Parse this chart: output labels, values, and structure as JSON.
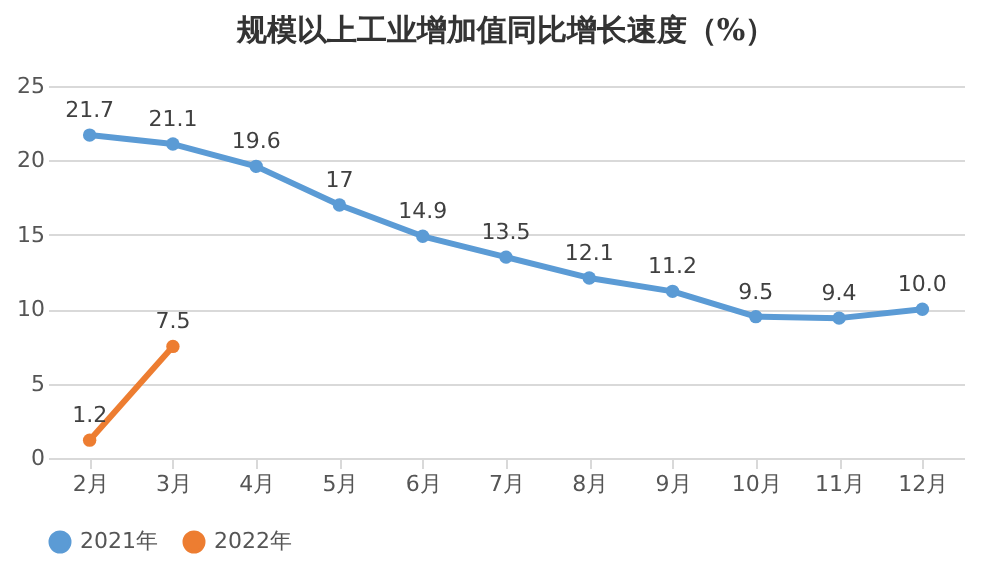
{
  "chart_data": {
    "type": "line",
    "title": "规模以上工业增加值同比增长速度（%）",
    "categories": [
      "2月",
      "3月",
      "4月",
      "5月",
      "6月",
      "7月",
      "8月",
      "9月",
      "10月",
      "11月",
      "12月"
    ],
    "series": [
      {
        "name": "2021年",
        "color": "#5b9bd5",
        "values": [
          21.7,
          21.1,
          19.6,
          17,
          14.9,
          13.5,
          12.1,
          11.2,
          9.5,
          9.4,
          10.0
        ],
        "value_labels": [
          "21.7",
          "21.1",
          "19.6",
          "17",
          "14.9",
          "13.5",
          "12.1",
          "11.2",
          "9.5",
          "9.4",
          "10.0"
        ]
      },
      {
        "name": "2022年",
        "color": "#ed7d31",
        "values": [
          1.2,
          7.5,
          null,
          null,
          null,
          null,
          null,
          null,
          null,
          null,
          null
        ],
        "value_labels": [
          "1.2",
          "7.5",
          null,
          null,
          null,
          null,
          null,
          null,
          null,
          null,
          null
        ]
      }
    ],
    "ylim": [
      0,
      25
    ],
    "yticks": [
      0,
      5,
      10,
      15,
      20,
      25
    ],
    "grid": "y",
    "legend": "bottom",
    "marker": "circle",
    "line_style": "solid"
  }
}
